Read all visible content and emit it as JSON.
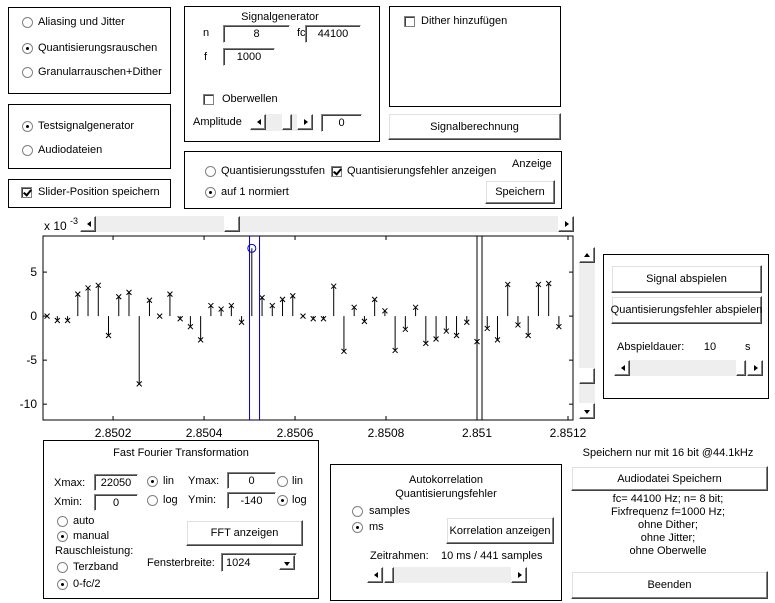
{
  "mode": {
    "options": [
      "Aliasing und Jitter",
      "Quantisierungsrauschen",
      "Granularrauschen+Dither"
    ],
    "selected": 1
  },
  "generator": {
    "title": "Signalgenerator",
    "n_label": "n",
    "n": "8",
    "fc_label": "fc",
    "fc": "44100",
    "f_label": "f",
    "f": "1000",
    "harmonics": {
      "label": "Oberwellen",
      "checked": false
    },
    "amplitude_label": "Amplitude",
    "amplitude": "0"
  },
  "dither": {
    "label": "Dither hinzufügen",
    "checked": false
  },
  "compute_button": "Signalberechnung",
  "source": {
    "options": [
      "Testsignalgenerator",
      "Audiodateien"
    ],
    "selected": 0
  },
  "save_slider": {
    "label": "Slider-Position speichern",
    "checked": true
  },
  "display": {
    "levels": {
      "options": [
        "Quantisierungsstufen",
        "auf 1 normiert"
      ],
      "selected": 1
    },
    "show_error": {
      "label": "Quantisierungsfehler anzeigen",
      "checked": true
    },
    "title": "Anzeige",
    "save_button": "Speichern"
  },
  "chart_data": {
    "type": "stem",
    "color": "#000000",
    "y_exponent": {
      "base": "x 10",
      "power": "-3"
    },
    "x": [
      2.850055,
      2.8500775,
      2.8501,
      2.8501225,
      2.850145,
      2.8501675,
      2.85019,
      2.8502125,
      2.850235,
      2.8502575,
      2.85028,
      2.8503025,
      2.850325,
      2.8503475,
      2.85037,
      2.8503925,
      2.850415,
      2.8504375,
      2.85046,
      2.8504825,
      2.850505,
      2.8505275,
      2.85055,
      2.8505725,
      2.850595,
      2.8506175,
      2.85064,
      2.8506625,
      2.850685,
      2.8507075,
      2.85073,
      2.8507525,
      2.850775,
      2.8507975,
      2.85082,
      2.8508425,
      2.850865,
      2.8508875,
      2.85091,
      2.8509325,
      2.850955,
      2.8509775,
      2.851,
      2.8510225,
      2.851045,
      2.8510675,
      2.85109,
      2.8511125,
      2.851135,
      2.8511575,
      2.85118
    ],
    "values": [
      0,
      -0.5,
      -0.5,
      2.5,
      3.2,
      3.5,
      -2.2,
      2.2,
      2.7,
      -7.7,
      1.8,
      0,
      2.5,
      -0.3,
      -1.2,
      -2.7,
      1.2,
      0.8,
      1.2,
      -0.7,
      7.7,
      2.1,
      1.2,
      1.9,
      2.3,
      0,
      -0.3,
      -0.3,
      3.4,
      -4,
      1,
      -0.6,
      1.9,
      0.6,
      -3.9,
      -1.5,
      1,
      -3.1,
      -2.6,
      -1.7,
      -2.2,
      -0.7,
      -2.9,
      -1.4,
      -2.7,
      3.6,
      -1,
      -2.2,
      3.6,
      3.7,
      -1.2
    ],
    "highlight": {
      "index": 20,
      "color": "#0000c0"
    },
    "cursors": [
      {
        "color": "#0000c0",
        "x": [
          2.8505,
          2.850522
        ]
      },
      {
        "color": "#000000",
        "x": [
          2.851,
          2.851011
        ]
      }
    ],
    "xlim": [
      2.850046,
      2.851211
    ],
    "xticks": [
      2.8502,
      2.8504,
      2.8506,
      2.8508,
      2.851,
      2.8512
    ],
    "ylim": [
      -11.8,
      9.1
    ],
    "yticks": [
      -10,
      -5,
      0,
      5
    ]
  },
  "playback": {
    "play_button": "Signal abspielen",
    "play_error_button": "Quantisierungsfehler abspielen",
    "duration_label": "Abspieldauer:",
    "duration": "10",
    "unit": "s"
  },
  "fft": {
    "title": "Fast Fourier Transformation",
    "xmax_label": "Xmax:",
    "xmax": "22050",
    "xmin_label": "Xmin:",
    "xmin": "0",
    "xscale": {
      "options": [
        "lin",
        "log"
      ],
      "selected": 0
    },
    "ymax_label": "Ymax:",
    "ymax": "0",
    "ymin_label": "Ymin:",
    "ymin": "-140",
    "yscale": {
      "options": [
        "lin",
        "log"
      ],
      "selected": 1
    },
    "range": {
      "options": [
        "auto",
        "manual"
      ],
      "selected": 1
    },
    "button": "FFT anzeigen",
    "noise_label": "Rauschleistung:",
    "noise": {
      "options": [
        "Terzband",
        "0-fc/2"
      ],
      "selected": 1
    },
    "window_label": "Fensterbreite:",
    "window": "1024"
  },
  "autocorr": {
    "title": "Autokorrelation",
    "subtitle": "Quantisierungsfehler",
    "unit": {
      "options": [
        "samples",
        "ms"
      ],
      "selected": 1
    },
    "button": "Korrelation anzeigen",
    "timeframe_label": "Zeitrahmen:",
    "timeframe": "10 ms / 441 samples"
  },
  "export": {
    "note": "Speichern nur mit 16 bit @44.1kHz",
    "button": "Audiodatei Speichern",
    "info": [
      "fc= 44100 Hz; n= 8 bit;",
      "Fixfrequenz f=1000 Hz;",
      "ohne Dither;",
      "ohne Jitter;",
      "ohne Oberwelle"
    ],
    "quit_button": "Beenden"
  }
}
